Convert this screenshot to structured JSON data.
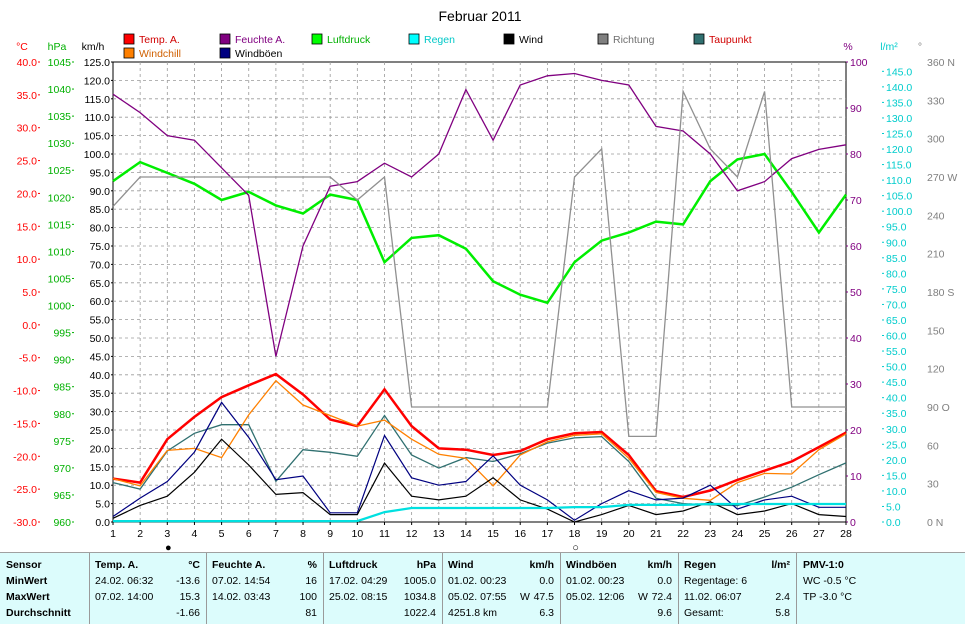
{
  "chart_data": {
    "type": "line",
    "title": "Februar 2011",
    "x": [
      1,
      2,
      3,
      4,
      5,
      6,
      7,
      8,
      9,
      10,
      11,
      12,
      13,
      14,
      15,
      16,
      17,
      18,
      19,
      20,
      21,
      22,
      23,
      24,
      25,
      26,
      27,
      28
    ],
    "xlim": [
      1,
      28
    ],
    "axes": [
      {
        "id": "temp",
        "unit": "°C",
        "min": -30,
        "max": 40,
        "step": 5,
        "color": "#ff0000",
        "side": "left"
      },
      {
        "id": "press",
        "unit": "hPa",
        "min": 960,
        "max": 1045,
        "step": 5,
        "color": "#00c000",
        "side": "left"
      },
      {
        "id": "kmh",
        "unit": "km/h",
        "min": 0,
        "max": 125,
        "step": 5,
        "color": "#000000",
        "side": "left"
      },
      {
        "id": "pct",
        "unit": "%",
        "min": 0,
        "max": 100,
        "step": 10,
        "color": "#800080",
        "side": "right"
      },
      {
        "id": "rain",
        "unit": "l/m²",
        "min": 0,
        "max": 148,
        "step": 5,
        "color": "#00d0d0",
        "side": "right"
      },
      {
        "id": "dir",
        "unit": "°",
        "min": 0,
        "max": 360,
        "step": 30,
        "color": "#808080",
        "side": "right",
        "labels": {
          "90": "90 O",
          "180": "180 S",
          "270": "270 W",
          "360": "360 N",
          "0": "0 N"
        }
      }
    ],
    "legend": [
      {
        "name": "Temp. A.",
        "color": "#ff0000"
      },
      {
        "name": "Feuchte A.",
        "color": "#800080"
      },
      {
        "name": "Luftdruck",
        "color": "#00ff00"
      },
      {
        "name": "Regen",
        "color": "#00ffff"
      },
      {
        "name": "Wind",
        "color": "#000000"
      },
      {
        "name": "Richtung",
        "color": "#808080"
      },
      {
        "name": "Taupunkt",
        "color": "#307070"
      },
      {
        "name": "Windchill",
        "color": "#ff8000"
      },
      {
        "name": "Windböen",
        "color": "#000080"
      }
    ],
    "series": [
      {
        "name": "Luftdruck",
        "axis": "press",
        "color": "#00ee00",
        "width": 2.5,
        "values": [
          1023.0,
          1026.5,
          1024.5,
          1022.5,
          1019.5,
          1021.0,
          1018.5,
          1017.0,
          1020.5,
          1019.5,
          1008.0,
          1012.5,
          1013.0,
          1010.5,
          1004.5,
          1002.0,
          1000.5,
          1008.0,
          1012.0,
          1013.5,
          1015.5,
          1015.0,
          1023.0,
          1027.0,
          1028.0,
          1021.0,
          1013.5,
          1020.5
        ]
      },
      {
        "name": "Feuchte A.",
        "axis": "pct",
        "color": "#800080",
        "width": 1.3,
        "values": [
          93,
          89,
          84,
          83,
          77,
          71,
          36,
          60,
          73,
          74,
          78,
          75,
          80,
          94,
          83,
          95,
          97,
          97.5,
          96,
          95,
          86,
          85,
          80,
          72,
          74,
          79,
          81,
          82
        ]
      },
      {
        "name": "Richtung",
        "axis": "dir",
        "color": "#909090",
        "width": 1.3,
        "values": [
          247,
          270,
          270,
          270,
          270,
          270,
          270,
          270,
          270,
          252,
          270,
          90,
          90,
          90,
          90,
          90,
          90,
          270,
          292,
          67,
          67,
          337,
          292,
          270,
          337,
          90,
          90,
          90
        ]
      },
      {
        "name": "Temp. A.",
        "axis": "temp",
        "color": "#ff0000",
        "width": 2.5,
        "values": [
          -23.4,
          -24.0,
          -17.4,
          -14.0,
          -11.0,
          -9.2,
          -7.5,
          -10.6,
          -14.4,
          -15.4,
          -9.8,
          -15.4,
          -18.8,
          -19.0,
          -19.8,
          -19.2,
          -17.4,
          -16.5,
          -16.3,
          -19.8,
          -25.3,
          -26.2,
          -25.2,
          -23.6,
          -22.2,
          -20.8,
          -18.6,
          -16.4
        ]
      },
      {
        "name": "Taupunkt",
        "axis": "temp",
        "color": "#307070",
        "width": 1.3,
        "values": [
          -24.0,
          -25.0,
          -19.2,
          -16.5,
          -15.2,
          -15.2,
          -23.8,
          -19.0,
          -19.4,
          -20.0,
          -13.8,
          -19.8,
          -21.8,
          -20.2,
          -20.8,
          -19.6,
          -18.0,
          -17.2,
          -17.0,
          -20.8,
          -26.4,
          -27.2,
          -27.4,
          -27.5,
          -26.2,
          -24.7,
          -22.8,
          -21.0
        ]
      },
      {
        "name": "Windchill",
        "axis": "temp",
        "color": "#ff8000",
        "width": 1.3,
        "values": [
          -23.4,
          -24.5,
          -19.1,
          -18.8,
          -20.2,
          -13.7,
          -8.5,
          -12.2,
          -13.8,
          -15.4,
          -14.5,
          -17.4,
          -19.7,
          -20.3,
          -24.5,
          -19.8,
          -17.8,
          -16.8,
          -16.6,
          -20.3,
          -25.5,
          -26.4,
          -26.7,
          -24.0,
          -22.6,
          -22.7,
          -19.0,
          -16.6
        ]
      },
      {
        "name": "Windböen",
        "axis": "kmh",
        "color": "#000080",
        "width": 1.2,
        "values": [
          1.5,
          6.5,
          11.0,
          19.0,
          32.5,
          23.0,
          11.5,
          12.5,
          2.5,
          2.5,
          23.5,
          12.0,
          10.0,
          11.0,
          18.0,
          10.0,
          6.0,
          0.5,
          5.0,
          8.5,
          6.0,
          6.5,
          10.0,
          3.5,
          6.0,
          7.0,
          4.0,
          4.0
        ]
      },
      {
        "name": "Wind",
        "axis": "kmh",
        "color": "#000000",
        "width": 1.2,
        "values": [
          1.0,
          4.5,
          7.0,
          13.5,
          22.5,
          15.5,
          7.5,
          8.0,
          2.0,
          2.0,
          16.0,
          7.0,
          6.0,
          7.0,
          12.0,
          6.0,
          3.5,
          0.0,
          2.0,
          4.5,
          2.0,
          3.0,
          5.5,
          2.0,
          3.0,
          5.0,
          2.0,
          1.5
        ]
      },
      {
        "name": "Regen",
        "axis": "rain",
        "color": "#00e0e0",
        "width": 2.2,
        "values": [
          0.3,
          0.3,
          0.3,
          0.3,
          0.3,
          0.3,
          0.3,
          0.3,
          0.3,
          0.3,
          3.2,
          4.5,
          4.5,
          4.5,
          4.5,
          4.5,
          4.5,
          4.8,
          4.8,
          5.5,
          5.5,
          5.5,
          5.8,
          5.8,
          5.8,
          5.8,
          5.8,
          5.8
        ]
      }
    ],
    "markers": [
      {
        "x": 3,
        "symbol": "●"
      },
      {
        "x": 18,
        "symbol": "○"
      }
    ]
  },
  "stats": {
    "labels": {
      "sensor": "Sensor",
      "min": "MinWert",
      "max": "MaxWert",
      "avg": "Durchschnitt"
    },
    "temp": {
      "header": "Temp. A.",
      "unit": "°C",
      "min_date": "24.02. 06:32",
      "min_val": "-13.6",
      "max_date": "07.02. 14:00",
      "max_val": "15.3",
      "avg_val": "-1.66"
    },
    "hum": {
      "header": "Feuchte A.",
      "unit": "%",
      "min_date": "07.02. 14:54",
      "min_val": "16",
      "max_date": "14.02. 03:43",
      "max_val": "100",
      "avg_val": "81"
    },
    "press": {
      "header": "Luftdruck",
      "unit": "hPa",
      "min_date": "17.02. 04:29",
      "min_val": "1005.0",
      "max_date": "25.02. 08:15",
      "max_val": "1034.8",
      "avg_val": "1022.4"
    },
    "wind": {
      "header": "Wind",
      "unit": "km/h",
      "min_date": "01.02. 00:23",
      "min_val": "0.0",
      "max_date": "05.02. 07:55",
      "max_dir": "W",
      "max_val": "47.5",
      "avg_left": "4251.8 km",
      "avg_val": "6.3"
    },
    "gust": {
      "header": "Windböen",
      "unit": "km/h",
      "min_date": "01.02. 00:23",
      "min_val": "0.0",
      "max_date": "05.02. 12:06",
      "max_dir": "W",
      "max_val": "72.4",
      "avg_val": "9.6"
    },
    "rain": {
      "header": "Regen",
      "unit": "l/m²",
      "row1": "Regentage: 6",
      "max_date": "11.02. 06:07",
      "max_val": "2.4",
      "total_label": "Gesamt:",
      "total_val": "5.8"
    },
    "pmv": {
      "header": "PMV-1:0",
      "wc": "WC -0.5 °C",
      "tp": "TP -3.0 °C"
    }
  }
}
